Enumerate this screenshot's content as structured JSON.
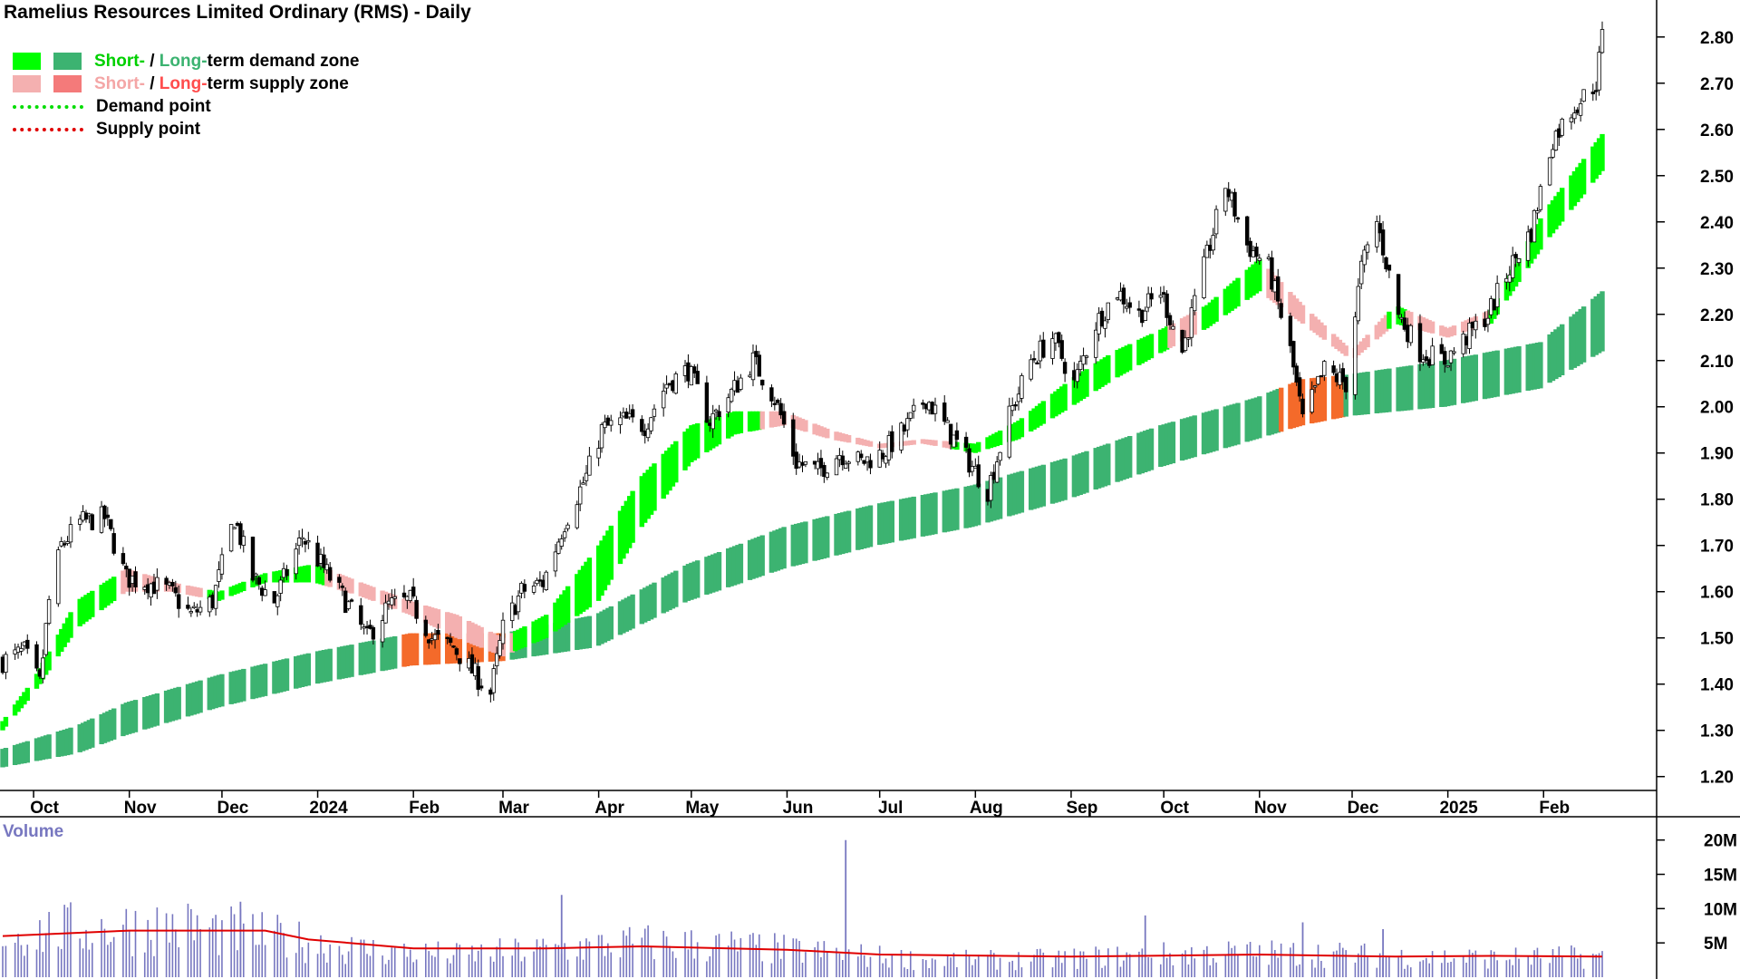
{
  "title": "Ramelius Resources Limited Ordinary (RMS) - Daily",
  "legend": {
    "demand_zone": {
      "short": "Short-",
      "sep": " / ",
      "long": "Long-",
      "rest": "term demand zone"
    },
    "supply_zone": {
      "short": "Short-",
      "sep": " / ",
      "long": "Long-",
      "rest": "term supply zone"
    },
    "demand_point": "Demand point",
    "supply_point": "Supply point"
  },
  "colors": {
    "short_demand": "#00ff00",
    "long_demand": "#3cb371",
    "short_supply": "#f4b0b0",
    "long_supply": "#f46a2a",
    "candle": "#000000",
    "volume_bar": "#7777c0",
    "volume_avg": "#e00000"
  },
  "chart_data": [
    {
      "type": "candlestick",
      "title": "Ramelius Resources Limited Ordinary (RMS) - Daily",
      "x_range": [
        "2023-09-21",
        "2025-02-20"
      ],
      "ylim": [
        1.17,
        2.88
      ],
      "y_ticks": [
        "1.20",
        "1.30",
        "1.40",
        "1.50",
        "1.60",
        "1.70",
        "1.80",
        "1.90",
        "2.00",
        "2.10",
        "2.20",
        "2.30",
        "2.40",
        "2.50",
        "2.60",
        "2.70",
        "2.80"
      ],
      "x_ticks": [
        {
          "date": "2023-10-01",
          "label": "Oct"
        },
        {
          "date": "2023-11-01",
          "label": "Nov"
        },
        {
          "date": "2023-12-01",
          "label": "Dec"
        },
        {
          "date": "2024-01-01",
          "label": "2024"
        },
        {
          "date": "2024-02-01",
          "label": "Feb"
        },
        {
          "date": "2024-03-01",
          "label": "Mar"
        },
        {
          "date": "2024-04-01",
          "label": "Apr"
        },
        {
          "date": "2024-05-01",
          "label": "May"
        },
        {
          "date": "2024-06-01",
          "label": "Jun"
        },
        {
          "date": "2024-07-01",
          "label": "Jul"
        },
        {
          "date": "2024-08-01",
          "label": "Aug"
        },
        {
          "date": "2024-09-01",
          "label": "Sep"
        },
        {
          "date": "2024-10-01",
          "label": "Oct"
        },
        {
          "date": "2024-11-01",
          "label": "Nov"
        },
        {
          "date": "2024-12-01",
          "label": "Dec"
        },
        {
          "date": "2025-01-01",
          "label": "2025"
        },
        {
          "date": "2025-02-01",
          "label": "Feb"
        }
      ],
      "grid": false,
      "close_path": [
        [
          "2023-09-21",
          1.45
        ],
        [
          "2023-09-28",
          1.47
        ],
        [
          "2023-10-03",
          1.4
        ],
        [
          "2023-10-06",
          1.58
        ],
        [
          "2023-10-10",
          1.7
        ],
        [
          "2023-10-16",
          1.75
        ],
        [
          "2023-10-24",
          1.76
        ],
        [
          "2023-10-31",
          1.63
        ],
        [
          "2023-11-07",
          1.62
        ],
        [
          "2023-11-14",
          1.6
        ],
        [
          "2023-11-21",
          1.55
        ],
        [
          "2023-11-28",
          1.58
        ],
        [
          "2023-12-05",
          1.76
        ],
        [
          "2023-12-11",
          1.63
        ],
        [
          "2023-12-18",
          1.58
        ],
        [
          "2023-12-27",
          1.72
        ],
        [
          "2024-01-03",
          1.65
        ],
        [
          "2024-01-10",
          1.58
        ],
        [
          "2024-01-17",
          1.5
        ],
        [
          "2024-01-24",
          1.57
        ],
        [
          "2024-01-31",
          1.58
        ],
        [
          "2024-02-07",
          1.5
        ],
        [
          "2024-02-14",
          1.48
        ],
        [
          "2024-02-21",
          1.42
        ],
        [
          "2024-02-26",
          1.38
        ],
        [
          "2024-03-01",
          1.52
        ],
        [
          "2024-03-07",
          1.6
        ],
        [
          "2024-03-14",
          1.62
        ],
        [
          "2024-03-21",
          1.75
        ],
        [
          "2024-03-28",
          1.85
        ],
        [
          "2024-04-02",
          1.95
        ],
        [
          "2024-04-09",
          1.97
        ],
        [
          "2024-04-16",
          1.96
        ],
        [
          "2024-04-23",
          2.05
        ],
        [
          "2024-04-30",
          2.08
        ],
        [
          "2024-05-07",
          1.97
        ],
        [
          "2024-05-14",
          2.03
        ],
        [
          "2024-05-21",
          2.1
        ],
        [
          "2024-05-28",
          2.02
        ],
        [
          "2024-06-04",
          1.88
        ],
        [
          "2024-06-11",
          1.86
        ],
        [
          "2024-06-18",
          1.9
        ],
        [
          "2024-06-25",
          1.88
        ],
        [
          "2024-07-02",
          1.9
        ],
        [
          "2024-07-09",
          1.95
        ],
        [
          "2024-07-16",
          2.02
        ],
        [
          "2024-07-23",
          1.95
        ],
        [
          "2024-07-30",
          1.88
        ],
        [
          "2024-08-05",
          1.82
        ],
        [
          "2024-08-12",
          1.98
        ],
        [
          "2024-08-19",
          2.1
        ],
        [
          "2024-08-26",
          2.15
        ],
        [
          "2024-09-02",
          2.05
        ],
        [
          "2024-09-09",
          2.18
        ],
        [
          "2024-09-16",
          2.25
        ],
        [
          "2024-09-23",
          2.2
        ],
        [
          "2024-09-30",
          2.25
        ],
        [
          "2024-10-07",
          2.12
        ],
        [
          "2024-10-14",
          2.3
        ],
        [
          "2024-10-21",
          2.48
        ],
        [
          "2024-10-28",
          2.35
        ],
        [
          "2024-11-04",
          2.3
        ],
        [
          "2024-11-11",
          2.12
        ],
        [
          "2024-11-15",
          1.97
        ],
        [
          "2024-11-22",
          2.08
        ],
        [
          "2024-11-29",
          2.05
        ],
        [
          "2024-12-04",
          2.3
        ],
        [
          "2024-12-09",
          2.4
        ],
        [
          "2024-12-16",
          2.2
        ],
        [
          "2024-12-23",
          2.12
        ],
        [
          "2024-12-31",
          2.1
        ],
        [
          "2025-01-07",
          2.15
        ],
        [
          "2025-01-14",
          2.2
        ],
        [
          "2025-01-21",
          2.3
        ],
        [
          "2025-01-28",
          2.38
        ],
        [
          "2025-02-04",
          2.58
        ],
        [
          "2025-02-11",
          2.65
        ],
        [
          "2025-02-18",
          2.7
        ],
        [
          "2025-02-20",
          2.8
        ]
      ],
      "short_term_zone": {
        "upper": [
          [
            "2023-09-21",
            1.32
          ],
          [
            "2023-10-01",
            1.41
          ],
          [
            "2023-10-15",
            1.58
          ],
          [
            "2023-10-31",
            1.65
          ],
          [
            "2023-11-15",
            1.62
          ],
          [
            "2023-11-30",
            1.6
          ],
          [
            "2023-12-15",
            1.64
          ],
          [
            "2023-12-31",
            1.66
          ],
          [
            "2024-01-15",
            1.62
          ],
          [
            "2024-01-31",
            1.58
          ],
          [
            "2024-02-15",
            1.55
          ],
          [
            "2024-03-01",
            1.5
          ],
          [
            "2024-03-15",
            1.55
          ],
          [
            "2024-04-01",
            1.7
          ],
          [
            "2024-04-15",
            1.85
          ],
          [
            "2024-05-01",
            1.96
          ],
          [
            "2024-05-15",
            1.99
          ],
          [
            "2024-05-31",
            1.99
          ],
          [
            "2024-06-15",
            1.95
          ],
          [
            "2024-07-01",
            1.92
          ],
          [
            "2024-07-15",
            1.93
          ],
          [
            "2024-08-01",
            1.92
          ],
          [
            "2024-08-15",
            1.97
          ],
          [
            "2024-09-01",
            2.06
          ],
          [
            "2024-09-15",
            2.12
          ],
          [
            "2024-10-01",
            2.17
          ],
          [
            "2024-10-15",
            2.22
          ],
          [
            "2024-11-01",
            2.32
          ],
          [
            "2024-11-15",
            2.22
          ],
          [
            "2024-12-01",
            2.12
          ],
          [
            "2024-12-15",
            2.22
          ],
          [
            "2025-01-01",
            2.17
          ],
          [
            "2025-01-15",
            2.21
          ],
          [
            "2025-02-01",
            2.42
          ],
          [
            "2025-02-20",
            2.59
          ]
        ],
        "lower": [
          [
            "2023-09-21",
            1.3
          ],
          [
            "2023-10-01",
            1.38
          ],
          [
            "2023-10-15",
            1.52
          ],
          [
            "2023-10-31",
            1.6
          ],
          [
            "2023-11-15",
            1.6
          ],
          [
            "2023-11-30",
            1.58
          ],
          [
            "2023-12-15",
            1.62
          ],
          [
            "2023-12-31",
            1.62
          ],
          [
            "2024-01-15",
            1.59
          ],
          [
            "2024-01-31",
            1.55
          ],
          [
            "2024-02-15",
            1.5
          ],
          [
            "2024-03-01",
            1.46
          ],
          [
            "2024-03-15",
            1.5
          ],
          [
            "2024-04-01",
            1.58
          ],
          [
            "2024-04-15",
            1.74
          ],
          [
            "2024-05-01",
            1.88
          ],
          [
            "2024-05-15",
            1.94
          ],
          [
            "2024-05-31",
            1.96
          ],
          [
            "2024-06-15",
            1.93
          ],
          [
            "2024-07-01",
            1.91
          ],
          [
            "2024-07-15",
            1.92
          ],
          [
            "2024-08-01",
            1.9
          ],
          [
            "2024-08-15",
            1.93
          ],
          [
            "2024-09-01",
            2.0
          ],
          [
            "2024-09-15",
            2.06
          ],
          [
            "2024-10-01",
            2.12
          ],
          [
            "2024-10-15",
            2.17
          ],
          [
            "2024-11-01",
            2.25
          ],
          [
            "2024-11-15",
            2.18
          ],
          [
            "2024-12-01",
            2.1
          ],
          [
            "2024-12-15",
            2.18
          ],
          [
            "2025-01-01",
            2.15
          ],
          [
            "2025-01-15",
            2.18
          ],
          [
            "2025-02-01",
            2.35
          ],
          [
            "2025-02-20",
            2.51
          ]
        ],
        "supply_spans": [
          [
            "2023-10-28",
            "2023-11-24"
          ],
          [
            "2024-01-04",
            "2024-03-04"
          ],
          [
            "2024-05-24",
            "2024-07-24"
          ],
          [
            "2024-10-03",
            "2024-10-12"
          ],
          [
            "2024-11-02",
            "2024-12-12"
          ],
          [
            "2024-12-19",
            "2025-01-14"
          ]
        ]
      },
      "long_term_zone": {
        "upper": [
          [
            "2023-09-21",
            1.26
          ],
          [
            "2023-10-15",
            1.31
          ],
          [
            "2023-10-31",
            1.36
          ],
          [
            "2023-11-30",
            1.42
          ],
          [
            "2023-12-31",
            1.47
          ],
          [
            "2024-01-31",
            1.51
          ],
          [
            "2024-03-01",
            1.51
          ],
          [
            "2024-03-31",
            1.55
          ],
          [
            "2024-04-30",
            1.66
          ],
          [
            "2024-05-31",
            1.74
          ],
          [
            "2024-06-30",
            1.79
          ],
          [
            "2024-07-31",
            1.83
          ],
          [
            "2024-08-31",
            1.89
          ],
          [
            "2024-09-30",
            1.96
          ],
          [
            "2024-10-31",
            2.02
          ],
          [
            "2024-11-15",
            2.06
          ],
          [
            "2024-11-30",
            2.07
          ],
          [
            "2024-12-31",
            2.1
          ],
          [
            "2025-01-31",
            2.14
          ],
          [
            "2025-02-20",
            2.25
          ]
        ],
        "lower": [
          [
            "2023-09-21",
            1.22
          ],
          [
            "2023-10-15",
            1.25
          ],
          [
            "2023-10-31",
            1.29
          ],
          [
            "2023-11-30",
            1.35
          ],
          [
            "2023-12-31",
            1.4
          ],
          [
            "2024-01-31",
            1.44
          ],
          [
            "2024-03-01",
            1.45
          ],
          [
            "2024-03-31",
            1.48
          ],
          [
            "2024-04-30",
            1.58
          ],
          [
            "2024-05-31",
            1.65
          ],
          [
            "2024-06-30",
            1.7
          ],
          [
            "2024-07-31",
            1.74
          ],
          [
            "2024-08-31",
            1.8
          ],
          [
            "2024-09-30",
            1.87
          ],
          [
            "2024-10-31",
            1.93
          ],
          [
            "2024-11-15",
            1.96
          ],
          [
            "2024-11-30",
            1.98
          ],
          [
            "2024-12-31",
            2.0
          ],
          [
            "2025-01-31",
            2.04
          ],
          [
            "2025-02-20",
            2.12
          ]
        ],
        "supply_spans": [
          [
            "2024-01-28",
            "2024-03-02"
          ],
          [
            "2024-11-08",
            "2024-11-28"
          ]
        ]
      }
    },
    {
      "type": "bar",
      "title": "Volume",
      "x_range": [
        "2023-09-21",
        "2025-02-20"
      ],
      "ylim": [
        0,
        23
      ],
      "y_ticks": [
        "5M",
        "10M",
        "15M",
        "20M"
      ],
      "volume_path_millions": [
        [
          "2023-09-21",
          6
        ],
        [
          "2023-10-15",
          7
        ],
        [
          "2023-11-15",
          7.5
        ],
        [
          "2023-12-15",
          6
        ],
        [
          "2024-01-15",
          4
        ],
        [
          "2024-02-15",
          3.2
        ],
        [
          "2024-03-15",
          4
        ],
        [
          "2024-04-15",
          5
        ],
        [
          "2024-05-15",
          4.5
        ],
        [
          "2024-06-15",
          3.5
        ],
        [
          "2024-07-15",
          2.5
        ],
        [
          "2024-08-15",
          2.5
        ],
        [
          "2024-09-15",
          3
        ],
        [
          "2024-10-15",
          3.5
        ],
        [
          "2024-11-15",
          3.5
        ],
        [
          "2024-12-15",
          3
        ],
        [
          "2025-01-15",
          2.8
        ],
        [
          "2025-02-20",
          3
        ]
      ],
      "volume_spikes_millions": [
        [
          "2023-12-07",
          11
        ],
        [
          "2024-03-20",
          12
        ],
        [
          "2024-06-20",
          20
        ],
        [
          "2024-09-25",
          9
        ],
        [
          "2024-11-15",
          8
        ],
        [
          "2024-12-11",
          7
        ]
      ],
      "average_line_millions": [
        [
          "2023-09-21",
          6.0
        ],
        [
          "2023-11-01",
          6.8
        ],
        [
          "2023-12-15",
          6.8
        ],
        [
          "2023-12-29",
          5.5
        ],
        [
          "2024-02-01",
          4.2
        ],
        [
          "2024-03-15",
          4.2
        ],
        [
          "2024-04-15",
          4.5
        ],
        [
          "2024-06-01",
          4.0
        ],
        [
          "2024-07-01",
          3.3
        ],
        [
          "2024-09-01",
          3.0
        ],
        [
          "2024-11-01",
          3.3
        ],
        [
          "2024-12-15",
          3.0
        ],
        [
          "2025-01-15",
          3.1
        ],
        [
          "2025-02-20",
          3.0
        ]
      ]
    }
  ]
}
